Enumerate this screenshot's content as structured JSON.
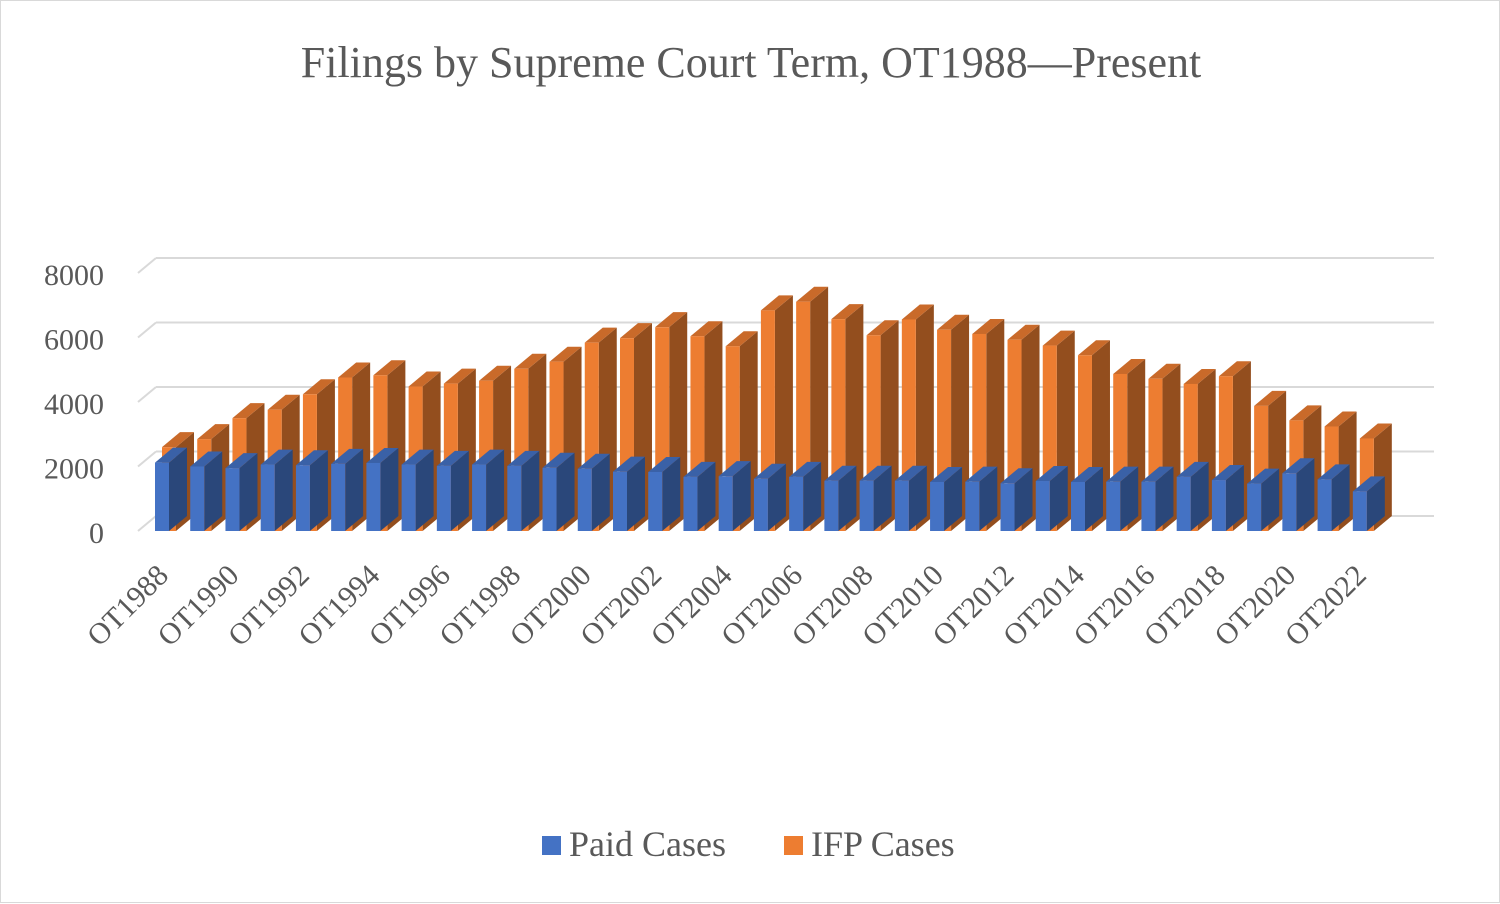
{
  "chart_data": {
    "type": "bar",
    "title": "Filings by Supreme Court Term, OT1988—Present",
    "xlabel": "",
    "ylabel": "",
    "ylim": [
      0,
      8000
    ],
    "yticks": [
      "0",
      "2000",
      "4000",
      "6000",
      "8000"
    ],
    "grid": true,
    "legend_position": "bottom",
    "categories": [
      "OT1988",
      "OT1989",
      "OT1990",
      "OT1991",
      "OT1992",
      "OT1993",
      "OT1994",
      "OT1995",
      "OT1996",
      "OT1997",
      "OT1998",
      "OT1999",
      "OT2000",
      "OT2001",
      "OT2002",
      "OT2003",
      "OT2004",
      "OT2005",
      "OT2006",
      "OT2007",
      "OT2008",
      "OT2009",
      "OT2010",
      "OT2011",
      "OT2012",
      "OT2013",
      "OT2014",
      "OT2015",
      "OT2016",
      "OT2017",
      "OT2018",
      "OT2019",
      "OT2020",
      "OT2021",
      "OT2022"
    ],
    "tick_labels": [
      "OT1988",
      "OT1990",
      "OT1992",
      "OT1994",
      "OT1996",
      "OT1998",
      "OT2000",
      "OT2002",
      "OT2004",
      "OT2006",
      "OT2008",
      "OT2010",
      "OT2012",
      "OT2014",
      "OT2016",
      "OT2018",
      "OT2020",
      "OT2022"
    ],
    "series": [
      {
        "name": "Paid Cases",
        "color": "#4472c4",
        "values": [
          2120,
          2000,
          1950,
          2060,
          2040,
          2080,
          2110,
          2060,
          2020,
          2060,
          2020,
          1960,
          1930,
          1840,
          1830,
          1680,
          1700,
          1620,
          1680,
          1560,
          1560,
          1560,
          1520,
          1530,
          1480,
          1550,
          1520,
          1530,
          1530,
          1680,
          1580,
          1470,
          1790,
          1600,
          1230
        ]
      },
      {
        "name": "IFP Cases",
        "color": "#ed7d31",
        "values": [
          2600,
          2850,
          3500,
          3760,
          4240,
          4760,
          4830,
          4480,
          4570,
          4660,
          5030,
          5250,
          5840,
          5980,
          6320,
          6040,
          5730,
          6840,
          7110,
          6570,
          6070,
          6560,
          6240,
          6110,
          5930,
          5750,
          5450,
          4870,
          4720,
          4560,
          4800,
          3880,
          3430,
          3240,
          2870
        ]
      }
    ]
  }
}
